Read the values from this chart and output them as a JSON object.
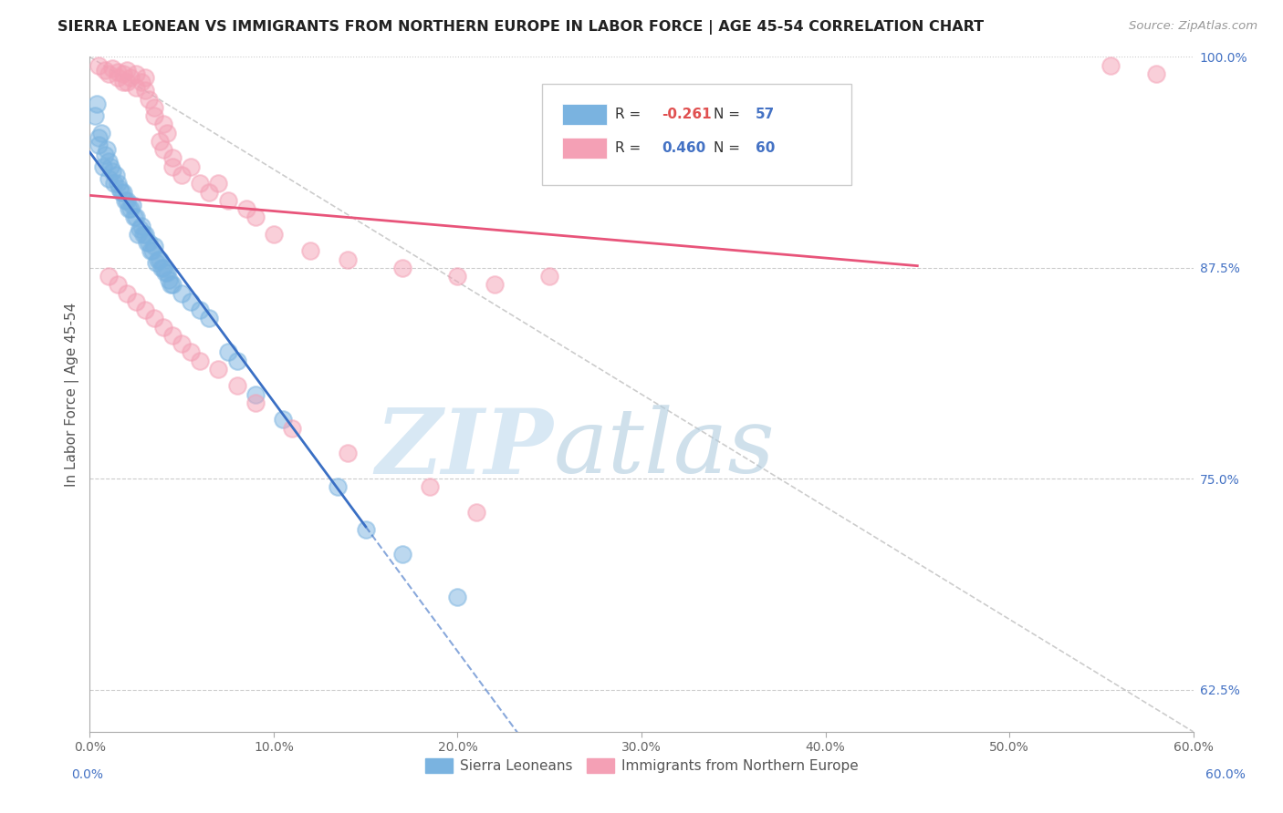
{
  "title": "SIERRA LEONEAN VS IMMIGRANTS FROM NORTHERN EUROPE IN LABOR FORCE | AGE 45-54 CORRELATION CHART",
  "source": "Source: ZipAtlas.com",
  "ylabel": "In Labor Force | Age 45-54",
  "x_min": 0.0,
  "x_max": 60.0,
  "y_min": 60.0,
  "y_max": 100.0,
  "legend_r_blue": "-0.261",
  "legend_n_blue": 57,
  "legend_r_pink": "0.460",
  "legend_n_pink": 60,
  "blue_color": "#7ab3e0",
  "pink_color": "#f4a0b5",
  "blue_line_color": "#3a6fc4",
  "pink_line_color": "#e8547a",
  "diagonal_line_color": "#c0c0c0",
  "background_color": "#ffffff",
  "watermark_zip_color": "#c8dff0",
  "watermark_atlas_color": "#b0ccdf",
  "sierra_x": [
    0.3,
    0.4,
    0.5,
    0.5,
    0.6,
    0.7,
    0.8,
    0.9,
    1.0,
    1.0,
    1.1,
    1.2,
    1.3,
    1.4,
    1.5,
    1.6,
    1.7,
    1.8,
    1.9,
    2.0,
    2.1,
    2.2,
    2.3,
    2.4,
    2.5,
    2.6,
    2.7,
    2.8,
    2.9,
    3.0,
    3.1,
    3.2,
    3.3,
    3.4,
    3.5,
    3.6,
    3.7,
    3.8,
    3.9,
    4.0,
    4.1,
    4.2,
    4.3,
    4.4,
    4.5,
    5.0,
    5.5,
    6.0,
    6.5,
    7.5,
    8.0,
    9.0,
    10.5,
    13.5,
    15.0,
    17.0,
    20.0
  ],
  "sierra_y": [
    96.5,
    97.2,
    95.2,
    94.8,
    95.5,
    93.5,
    94.2,
    94.5,
    93.8,
    92.8,
    93.5,
    93.2,
    92.5,
    93.0,
    92.5,
    92.2,
    92.0,
    92.0,
    91.5,
    91.5,
    91.0,
    91.0,
    91.2,
    90.5,
    90.5,
    89.5,
    89.8,
    90.0,
    89.5,
    89.5,
    89.0,
    89.0,
    88.5,
    88.5,
    88.8,
    87.8,
    88.0,
    88.0,
    87.5,
    87.5,
    87.2,
    87.2,
    86.8,
    86.5,
    86.5,
    86.0,
    85.5,
    85.0,
    84.5,
    82.5,
    82.0,
    80.0,
    78.5,
    74.5,
    72.0,
    70.5,
    68.0
  ],
  "northern_x": [
    0.5,
    0.8,
    1.0,
    1.2,
    1.5,
    1.5,
    1.8,
    1.8,
    2.0,
    2.0,
    2.2,
    2.5,
    2.5,
    2.8,
    3.0,
    3.0,
    3.2,
    3.5,
    3.5,
    3.8,
    4.0,
    4.0,
    4.2,
    4.5,
    4.5,
    5.0,
    5.5,
    6.0,
    6.5,
    7.0,
    7.5,
    8.5,
    9.0,
    10.0,
    12.0,
    14.0,
    17.0,
    20.0,
    22.0,
    25.0,
    1.0,
    1.5,
    2.0,
    2.5,
    3.0,
    3.5,
    4.0,
    4.5,
    5.0,
    5.5,
    6.0,
    7.0,
    8.0,
    9.0,
    11.0,
    14.0,
    18.5,
    21.0,
    55.5,
    58.0
  ],
  "northern_y": [
    99.5,
    99.2,
    99.0,
    99.3,
    99.1,
    98.8,
    99.0,
    98.5,
    99.2,
    98.5,
    98.8,
    99.0,
    98.2,
    98.5,
    98.8,
    98.0,
    97.5,
    97.0,
    96.5,
    95.0,
    96.0,
    94.5,
    95.5,
    94.0,
    93.5,
    93.0,
    93.5,
    92.5,
    92.0,
    92.5,
    91.5,
    91.0,
    90.5,
    89.5,
    88.5,
    88.0,
    87.5,
    87.0,
    86.5,
    87.0,
    87.0,
    86.5,
    86.0,
    85.5,
    85.0,
    84.5,
    84.0,
    83.5,
    83.0,
    82.5,
    82.0,
    81.5,
    80.5,
    79.5,
    78.0,
    76.5,
    74.5,
    73.0,
    99.5,
    99.0
  ]
}
